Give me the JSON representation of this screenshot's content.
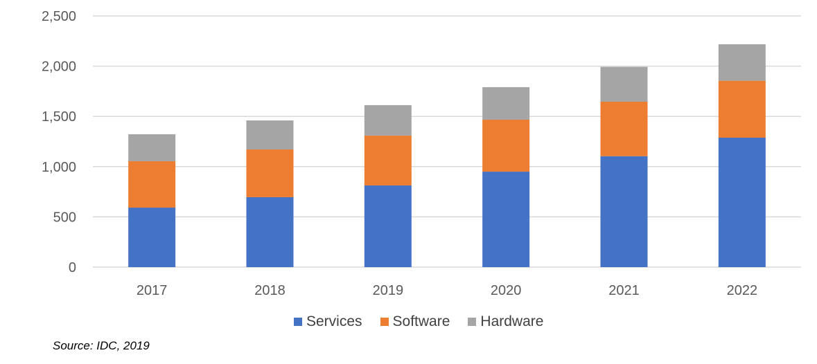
{
  "chart_data": {
    "type": "bar",
    "stacked": true,
    "title": "",
    "xlabel": "",
    "ylabel": "",
    "categories": [
      "2017",
      "2018",
      "2019",
      "2020",
      "2021",
      "2022"
    ],
    "series": [
      {
        "name": "Services",
        "color": "#4472C4",
        "values": [
          592,
          696,
          813,
          950,
          1104,
          1288
        ]
      },
      {
        "name": "Software",
        "color": "#ED7D31",
        "values": [
          462,
          475,
          496,
          517,
          542,
          567
        ]
      },
      {
        "name": "Hardware",
        "color": "#A5A5A5",
        "values": [
          268,
          289,
          303,
          324,
          347,
          363
        ]
      }
    ],
    "ylim": [
      0,
      2500
    ],
    "yticks": [
      0,
      500,
      1000,
      1500,
      2000,
      2500
    ],
    "ytick_labels": [
      "0",
      "500",
      "1,000",
      "1,500",
      "2,000",
      "2,500"
    ],
    "grid": true,
    "legend_position": "bottom"
  },
  "source": "Source: IDC, 2019"
}
